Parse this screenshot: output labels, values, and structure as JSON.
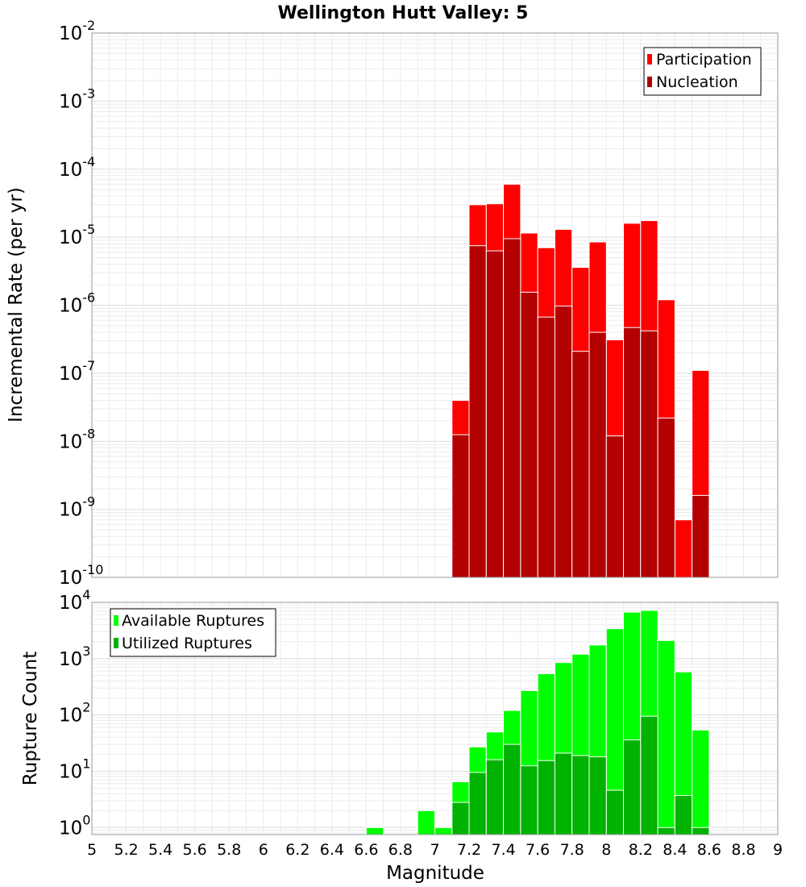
{
  "chart_data": [
    {
      "type": "bar",
      "title": "Wellington Hutt Valley: 5",
      "ylabel": "Incremental Rate (per yr)",
      "yscale": "log",
      "ylim": [
        1e-10,
        0.01
      ],
      "xlim": [
        5,
        9
      ],
      "grid": true,
      "legend_position": "top-right",
      "bin_width": 0.1,
      "x": [
        7.15,
        7.25,
        7.35,
        7.45,
        7.55,
        7.65,
        7.75,
        7.85,
        7.95,
        8.05,
        8.15,
        8.25,
        8.35,
        8.45,
        8.55
      ],
      "series": [
        {
          "name": "Participation",
          "color": "#ff0000",
          "values": [
            4e-08,
            3e-05,
            3.1e-05,
            6e-05,
            1.15e-05,
            7e-06,
            1.3e-05,
            3.6e-06,
            8.5e-06,
            3.1e-07,
            1.6e-05,
            1.75e-05,
            1.2e-06,
            7e-10,
            1.1e-07
          ]
        },
        {
          "name": "Nucleation",
          "color": "#b30000",
          "values": [
            1.25e-08,
            7.5e-06,
            6.3e-06,
            9.5e-06,
            1.55e-06,
            6.7e-07,
            9.7e-07,
            2.1e-07,
            4e-07,
            1.2e-08,
            4.7e-07,
            4.2e-07,
            2.2e-08,
            1e-10,
            1.6e-09
          ]
        }
      ]
    },
    {
      "type": "bar",
      "xlabel": "Magnitude",
      "ylabel": "Rupture Count",
      "yscale": "log",
      "ylim": [
        0.75,
        10000
      ],
      "xlim": [
        5,
        9
      ],
      "grid": true,
      "legend_position": "top-left",
      "bin_width": 0.1,
      "x": [
        6.65,
        6.95,
        7.05,
        7.15,
        7.25,
        7.35,
        7.45,
        7.55,
        7.65,
        7.75,
        7.85,
        7.95,
        8.05,
        8.15,
        8.25,
        8.35,
        8.45,
        8.55
      ],
      "series": [
        {
          "name": "Available Ruptures",
          "color": "#00ff00",
          "values": [
            1,
            2,
            1,
            6.5,
            27,
            50,
            120,
            270,
            540,
            850,
            1200,
            1750,
            3400,
            6700,
            7200,
            2100,
            580,
            54
          ]
        },
        {
          "name": "Utilized Ruptures",
          "color": "#00b300",
          "values": [
            0,
            0,
            0,
            2.8,
            9.5,
            16,
            30,
            12.5,
            15.5,
            21,
            19,
            18,
            4.6,
            36,
            95,
            1,
            3.7,
            1
          ]
        }
      ]
    }
  ],
  "x_ticks": [
    "5",
    "5.2",
    "5.4",
    "5.6",
    "5.8",
    "6",
    "6.2",
    "6.4",
    "6.6",
    "6.8",
    "7",
    "7.2",
    "7.4",
    "7.6",
    "7.8",
    "8",
    "8.2",
    "8.4",
    "8.6",
    "8.8",
    "9"
  ],
  "top_y_ticks": [
    {
      "base": "10",
      "exp": "-2"
    },
    {
      "base": "10",
      "exp": "-3"
    },
    {
      "base": "10",
      "exp": "-4"
    },
    {
      "base": "10",
      "exp": "-5"
    },
    {
      "base": "10",
      "exp": "-6"
    },
    {
      "base": "10",
      "exp": "-7"
    },
    {
      "base": "10",
      "exp": "-8"
    },
    {
      "base": "10",
      "exp": "-9"
    },
    {
      "base": "10",
      "exp": "-10"
    }
  ],
  "bottom_y_ticks": [
    {
      "base": "10",
      "exp": "4"
    },
    {
      "base": "10",
      "exp": "3"
    },
    {
      "base": "10",
      "exp": "2"
    },
    {
      "base": "10",
      "exp": "1"
    },
    {
      "base": "10",
      "exp": "0"
    }
  ]
}
